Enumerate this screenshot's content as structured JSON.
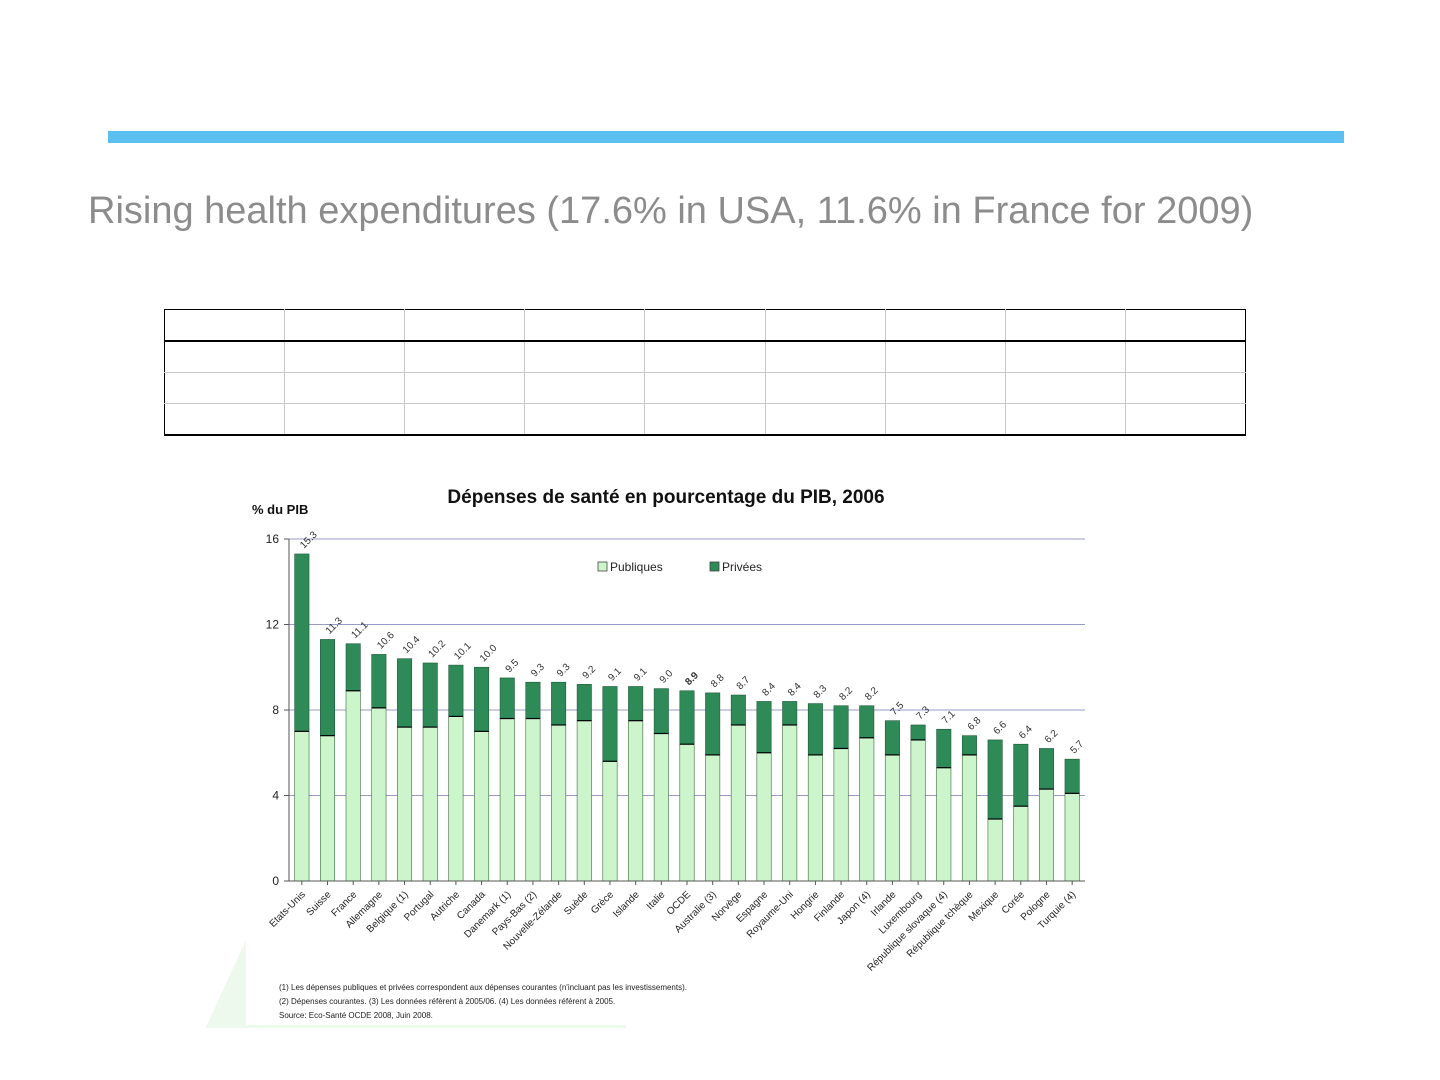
{
  "slide": {
    "title": "Rising health expenditures (17.6% in USA, 11.6% in France for 2009)",
    "accent_color": "#5bc0f0",
    "title_color": "#8c8c8c"
  },
  "table": {
    "rows": 4,
    "columns": 9
  },
  "chart_data": {
    "type": "bar",
    "stacked": true,
    "title": "Dépenses de santé en pourcentage du PIB, 2006",
    "ylabel": "% du PIB",
    "ylim": [
      0,
      16
    ],
    "yticks": [
      "0",
      "4",
      "8",
      "12",
      "16"
    ],
    "grid": true,
    "legend_position": "top-right",
    "categories": [
      "Etats-Unis",
      "Suisse",
      "France",
      "Allemagne",
      "Belgique (1)",
      "Portugal",
      "Autriche",
      "Canada",
      "Danemark (1)",
      "Pays-Bas (2)",
      "Nouvelle-Zélande",
      "Suède",
      "Grèce",
      "Islande",
      "Italie",
      "OCDE",
      "Australie (3)",
      "Norvège",
      "Espagne",
      "Royaume-Uni",
      "Hongrie",
      "Finlande",
      "Japon (4)",
      "Irlande",
      "Luxembourg",
      "République slovaque (4)",
      "République tchèque",
      "Mexique",
      "Corée",
      "Pologne",
      "Turquie (4)"
    ],
    "value_labels": [
      "15.3",
      "11.3",
      "11.1",
      "10.6",
      "10.4",
      "10.2",
      "10.1",
      "10.0",
      "9.5",
      "9.3",
      "9.3",
      "9.2",
      "9.1",
      "9.1",
      "9.0",
      "8.9",
      "8.8",
      "8.7",
      "8.4",
      "8.4",
      "8.3",
      "8.2",
      "8.2",
      "7.5",
      "7.3",
      "7.1",
      "6.8",
      "6.6",
      "6.4",
      "6.2",
      "5.7"
    ],
    "highlight_category": "OCDE",
    "series": [
      {
        "name": "Publiques",
        "color": "#ccf5cc",
        "values": [
          7.0,
          6.8,
          8.9,
          8.1,
          7.2,
          7.2,
          7.7,
          7.0,
          7.6,
          7.6,
          7.3,
          7.5,
          5.6,
          7.5,
          6.9,
          6.4,
          5.9,
          7.3,
          6.0,
          7.3,
          5.9,
          6.2,
          6.7,
          5.9,
          6.6,
          5.3,
          5.9,
          2.9,
          3.5,
          4.3,
          4.1
        ]
      },
      {
        "name": "Privées",
        "color": "#2e8b57",
        "values": [
          8.3,
          4.5,
          2.2,
          2.5,
          3.2,
          3.0,
          2.4,
          3.0,
          1.9,
          1.7,
          2.0,
          1.7,
          3.5,
          1.6,
          2.1,
          2.5,
          2.9,
          1.4,
          2.4,
          1.1,
          2.4,
          2.0,
          1.5,
          1.6,
          0.7,
          1.8,
          0.9,
          3.7,
          2.9,
          1.9,
          1.6
        ]
      }
    ],
    "notes": [
      "(1) Les dépenses publiques et privées correspondent aux dépenses courantes (n'incluant pas les investissements).",
      "(2) Dépenses courantes. (3) Les données réfèrent à 2005/06. (4) Les données réfèrent à 2005.",
      "Source: Eco-Santé OCDE 2008, Juin 2008."
    ]
  }
}
